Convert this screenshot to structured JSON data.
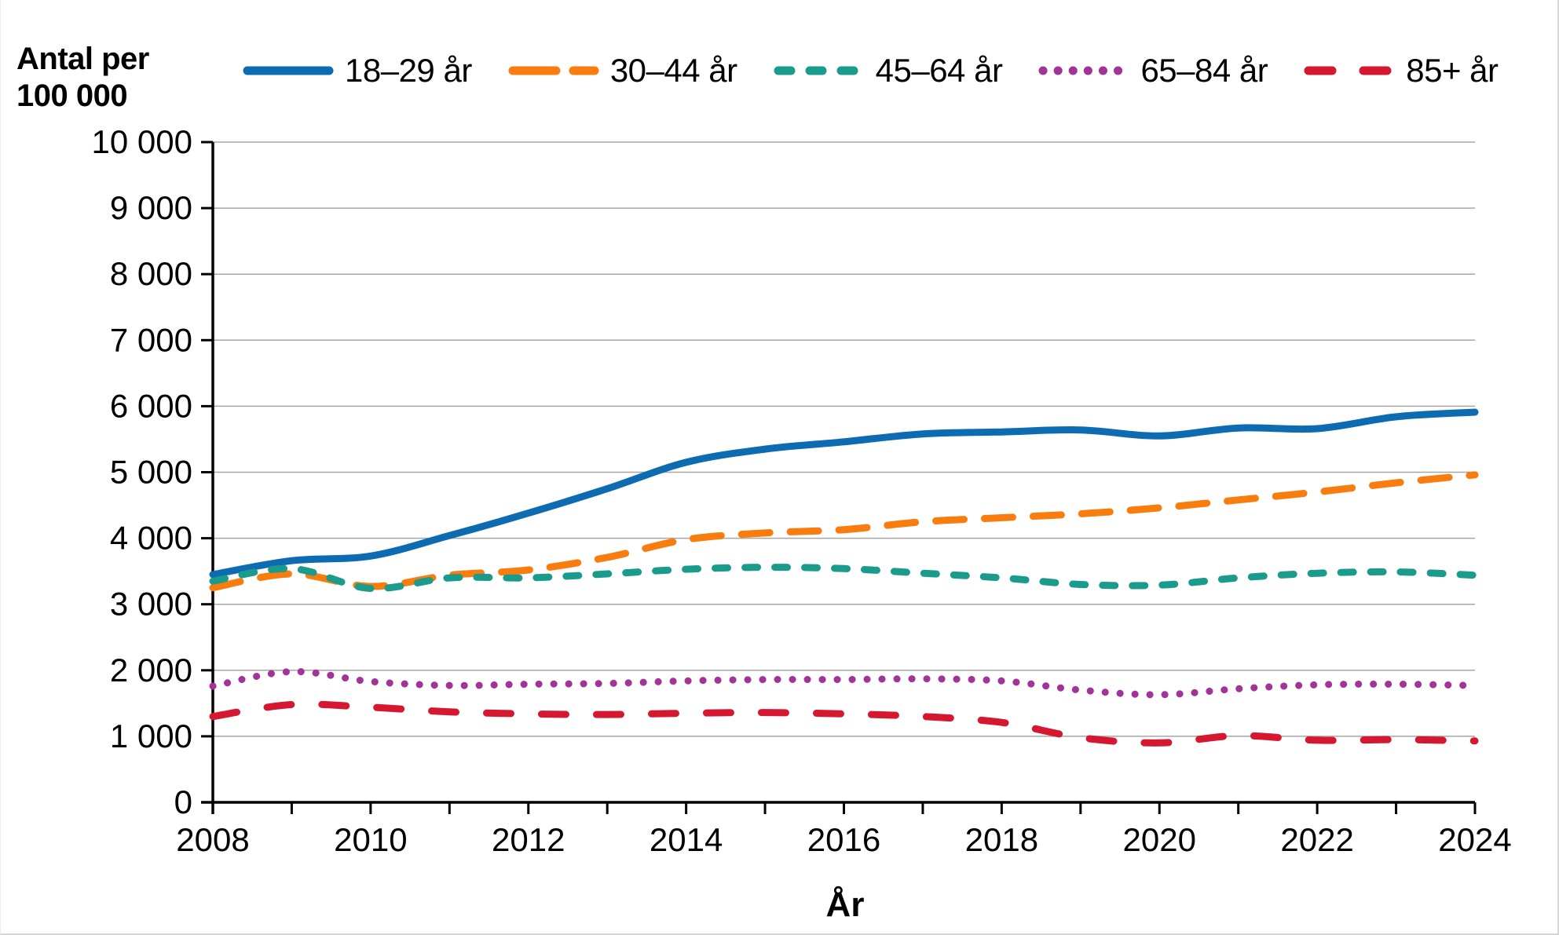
{
  "chart_data": {
    "type": "line",
    "y_axis": {
      "title_line1": "Antal per",
      "title_line2": "100 000",
      "min": 0,
      "max": 10000,
      "tick_step": 1000,
      "tick_labels": [
        "0",
        "1 000",
        "2 000",
        "3 000",
        "4 000",
        "5 000",
        "6 000",
        "7 000",
        "8 000",
        "9 000",
        "10 000"
      ]
    },
    "x_axis": {
      "title": "År",
      "min": 2008,
      "max": 2024,
      "tick_step": 1,
      "label_step": 2,
      "tick_labels": [
        "2008",
        "2010",
        "2012",
        "2014",
        "2016",
        "2018",
        "2020",
        "2022",
        "2024"
      ]
    },
    "x": [
      2008,
      2009,
      2010,
      2011,
      2012,
      2013,
      2014,
      2015,
      2016,
      2017,
      2018,
      2019,
      2020,
      2021,
      2022,
      2023,
      2024
    ],
    "series": [
      {
        "name": "18–29 år",
        "color": "#0d6cb1",
        "line_style": "solid",
        "values": [
          3450,
          3660,
          3730,
          4040,
          4380,
          4750,
          5150,
          5350,
          5460,
          5580,
          5610,
          5640,
          5550,
          5670,
          5660,
          5840,
          5910
        ]
      },
      {
        "name": "30–44 år",
        "color": "#f87d0e",
        "line_style": "long-dash",
        "values": [
          3250,
          3460,
          3270,
          3440,
          3520,
          3710,
          3980,
          4080,
          4130,
          4250,
          4310,
          4370,
          4460,
          4580,
          4700,
          4840,
          4960
        ]
      },
      {
        "name": "45–64 år",
        "color": "#1b9b8c",
        "line_style": "short-dash",
        "values": [
          3350,
          3540,
          3240,
          3400,
          3400,
          3460,
          3530,
          3560,
          3540,
          3470,
          3400,
          3300,
          3290,
          3400,
          3470,
          3490,
          3440
        ]
      },
      {
        "name": "65–84 år",
        "color": "#a23499",
        "line_style": "dot",
        "values": [
          1760,
          1980,
          1830,
          1770,
          1790,
          1800,
          1840,
          1860,
          1860,
          1870,
          1840,
          1700,
          1630,
          1720,
          1780,
          1790,
          1770
        ]
      },
      {
        "name": "85+ år",
        "color": "#d5182f",
        "line_style": "wide-dash",
        "values": [
          1300,
          1480,
          1440,
          1370,
          1340,
          1330,
          1350,
          1360,
          1340,
          1300,
          1210,
          980,
          900,
          1010,
          940,
          950,
          930
        ]
      }
    ],
    "grid_color": "#a6a6a6",
    "axis_color": "#000000",
    "legend_position": "top"
  }
}
